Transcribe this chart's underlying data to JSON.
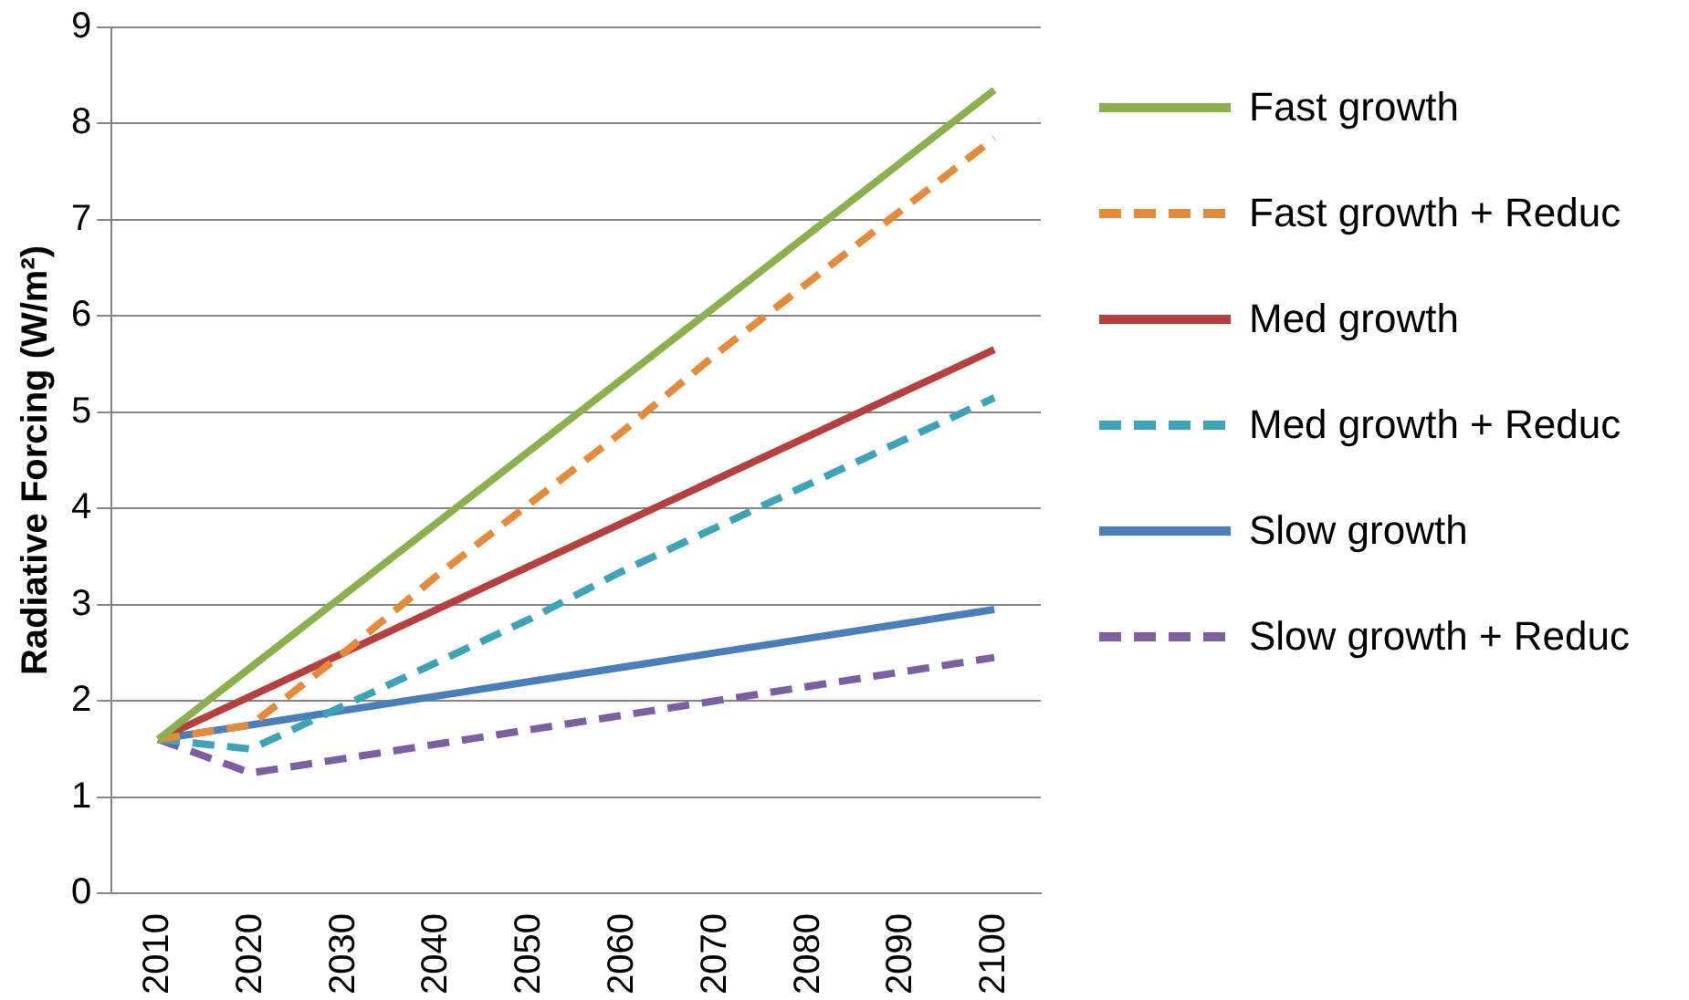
{
  "chart_data": {
    "type": "line",
    "ylabel": "Radiative Forcing (W/m²)",
    "categories": [
      "2010",
      "2020",
      "2030",
      "2040",
      "2050",
      "2060",
      "2070",
      "2080",
      "2090",
      "2100"
    ],
    "ylim": [
      0,
      9
    ],
    "yticks": [
      0,
      1,
      2,
      3,
      4,
      5,
      6,
      7,
      8,
      9
    ],
    "grid": "y",
    "legend": "right",
    "marker": "none",
    "series": [
      {
        "name": "Fast growth",
        "color": "#8db04f",
        "line_style": "solid",
        "values": [
          1.6,
          2.35,
          3.1,
          3.85,
          4.6,
          5.35,
          6.1,
          6.85,
          7.6,
          8.35
        ]
      },
      {
        "name": "Fast growth + Reduc",
        "color": "#e48b3b",
        "line_style": "dashed",
        "values": [
          1.6,
          1.75,
          2.5,
          3.3,
          4.05,
          4.8,
          5.6,
          6.35,
          7.1,
          7.85
        ]
      },
      {
        "name": "Med growth",
        "color": "#b5413e",
        "line_style": "solid",
        "values": [
          1.6,
          2.05,
          2.5,
          2.95,
          3.4,
          3.85,
          4.3,
          4.75,
          5.2,
          5.65
        ]
      },
      {
        "name": "Med growth + Reduc",
        "color": "#3fa3b8",
        "line_style": "dashed",
        "values": [
          1.6,
          1.5,
          1.95,
          2.4,
          2.85,
          3.35,
          3.8,
          4.25,
          4.7,
          5.15
        ]
      },
      {
        "name": "Slow growth",
        "color": "#4a7ebb",
        "line_style": "solid",
        "values": [
          1.6,
          1.75,
          1.9,
          2.05,
          2.2,
          2.35,
          2.5,
          2.65,
          2.8,
          2.95
        ]
      },
      {
        "name": "Slow growth + Reduc",
        "color": "#7b5fa0",
        "line_style": "dashed",
        "values": [
          1.6,
          1.25,
          1.4,
          1.55,
          1.7,
          1.85,
          2.0,
          2.15,
          2.3,
          2.45
        ]
      }
    ]
  }
}
